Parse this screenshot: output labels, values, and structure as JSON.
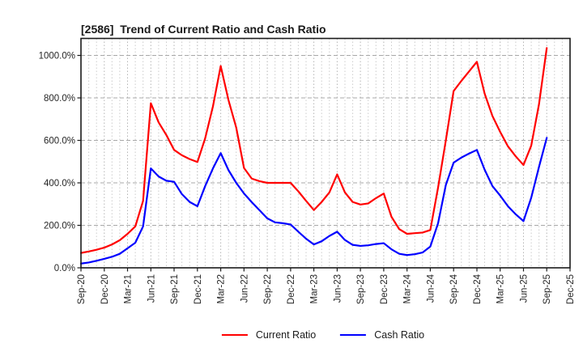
{
  "title": "[2586]  Trend of Current Ratio and Cash Ratio",
  "chart_data": {
    "type": "line",
    "x_monthly": [
      "Sep-20",
      "Oct-20",
      "Nov-20",
      "Dec-20",
      "Jan-21",
      "Feb-21",
      "Mar-21",
      "Apr-21",
      "May-21",
      "Jun-21",
      "Jul-21",
      "Aug-21",
      "Sep-21",
      "Oct-21",
      "Nov-21",
      "Dec-21",
      "Jan-22",
      "Feb-22",
      "Mar-22",
      "Apr-22",
      "May-22",
      "Jun-22",
      "Jul-22",
      "Aug-22",
      "Sep-22",
      "Oct-22",
      "Nov-22",
      "Dec-22",
      "Jan-23",
      "Feb-23",
      "Mar-23",
      "Apr-23",
      "May-23",
      "Jun-23",
      "Jul-23",
      "Aug-23",
      "Sep-23",
      "Oct-23",
      "Nov-23",
      "Dec-23",
      "Jan-24",
      "Feb-24",
      "Mar-24",
      "Apr-24",
      "May-24",
      "Jun-24",
      "Jul-24",
      "Aug-24",
      "Sep-24",
      "Oct-24",
      "Nov-24",
      "Dec-24",
      "Jan-25",
      "Feb-25",
      "Mar-25",
      "Apr-25",
      "May-25",
      "Jun-25",
      "Jul-25",
      "Aug-25",
      "Sep-25"
    ],
    "series": [
      {
        "name": "Current Ratio",
        "color": "#ff0000",
        "values": [
          70,
          77,
          85,
          95,
          110,
          130,
          160,
          195,
          315,
          775,
          685,
          625,
          555,
          530,
          512,
          498,
          610,
          760,
          950,
          790,
          660,
          470,
          420,
          408,
          400,
          400,
          400,
          400,
          360,
          315,
          272,
          310,
          355,
          440,
          355,
          310,
          298,
          303,
          328,
          350,
          240,
          182,
          160,
          163,
          166,
          178,
          378,
          600,
          832,
          880,
          925,
          970,
          820,
          715,
          640,
          572,
          525,
          484,
          575,
          770,
          1035
        ]
      },
      {
        "name": "Cash Ratio",
        "color": "#0000ff",
        "values": [
          20,
          25,
          33,
          42,
          52,
          66,
          92,
          118,
          195,
          468,
          430,
          410,
          405,
          347,
          310,
          290,
          385,
          468,
          540,
          460,
          400,
          350,
          309,
          271,
          233,
          214,
          210,
          204,
          170,
          137,
          110,
          125,
          150,
          170,
          131,
          108,
          103,
          106,
          112,
          116,
          87,
          66,
          60,
          64,
          72,
          100,
          210,
          390,
          495,
          519,
          538,
          555,
          462,
          385,
          340,
          290,
          252,
          220,
          330,
          475,
          612
        ]
      }
    ],
    "x_tick_labels": [
      "Sep-20",
      "Dec-20",
      "Mar-21",
      "Jun-21",
      "Sep-21",
      "Dec-21",
      "Mar-22",
      "Jun-22",
      "Sep-22",
      "Dec-22",
      "Mar-23",
      "Jun-23",
      "Sep-23",
      "Dec-23",
      "Mar-24",
      "Jun-24",
      "Sep-24",
      "Dec-24",
      "Mar-25",
      "Jun-25",
      "Sep-25",
      "Dec-25"
    ],
    "y_tick_labels": [
      "0.0%",
      "200.0%",
      "400.0%",
      "600.0%",
      "800.0%",
      "1000.0%"
    ],
    "y_tick_values": [
      0,
      200,
      400,
      600,
      800,
      1000
    ],
    "ylim": [
      0,
      1080
    ],
    "x_axis_total_months": 63,
    "grid": true,
    "legend_position": "bottom-center"
  }
}
